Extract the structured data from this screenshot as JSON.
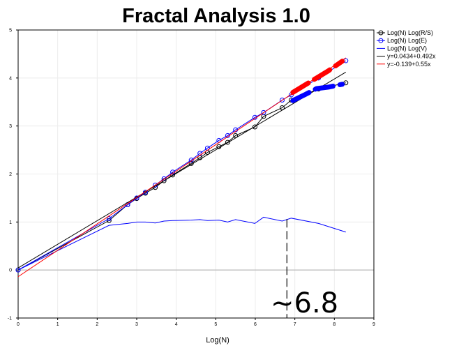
{
  "chart_data": {
    "type": "scatter",
    "title": "Fractal Analysis 1.0",
    "xlabel": "Log(N)",
    "ylabel": "",
    "xlim": [
      0,
      9
    ],
    "ylim": [
      -1,
      5
    ],
    "x_ticks": [
      "0",
      "1",
      "2",
      "3",
      "4",
      "5",
      "6",
      "7",
      "8",
      "9"
    ],
    "y_ticks": [
      "-1",
      "0",
      "1",
      "2",
      "3",
      "4",
      "5"
    ],
    "grid": true,
    "legend_position": "top-right",
    "series": [
      {
        "name": "Log(N) Log(R/S)",
        "kind": "line-markers",
        "color": "#000000",
        "marker": "circle",
        "x": [
          0,
          2.3,
          2.77,
          3.0,
          3.22,
          3.47,
          3.69,
          3.91,
          4.38,
          4.6,
          4.79,
          5.08,
          5.3,
          5.5,
          5.99,
          6.21,
          6.68,
          6.91,
          7.6,
          8.29
        ],
        "y": [
          0.0,
          1.03,
          1.36,
          1.49,
          1.6,
          1.72,
          1.86,
          1.98,
          2.22,
          2.34,
          2.45,
          2.57,
          2.66,
          2.8,
          2.98,
          3.2,
          3.38,
          3.54,
          3.77,
          3.9
        ]
      },
      {
        "name": "Log(N) Log(E)",
        "kind": "line-markers",
        "color": "#0000ff",
        "marker": "circle",
        "x": [
          0,
          2.3,
          2.77,
          3.0,
          3.22,
          3.47,
          3.69,
          3.91,
          4.38,
          4.6,
          4.79,
          5.08,
          5.3,
          5.5,
          5.99,
          6.21,
          6.68,
          6.91,
          7.6,
          8.29
        ],
        "y": [
          0.0,
          1.07,
          1.36,
          1.5,
          1.62,
          1.77,
          1.9,
          2.04,
          2.29,
          2.43,
          2.54,
          2.7,
          2.8,
          2.92,
          3.18,
          3.28,
          3.54,
          3.65,
          4.0,
          4.36
        ]
      },
      {
        "name": "Log(N) Log(V)",
        "kind": "line",
        "color": "#0000ff",
        "x": [
          0,
          2.3,
          2.77,
          3.0,
          3.22,
          3.47,
          3.69,
          3.91,
          4.38,
          4.6,
          4.79,
          5.08,
          5.3,
          5.5,
          5.99,
          6.21,
          6.68,
          6.91,
          7.6,
          8.29
        ],
        "y": [
          0.0,
          0.93,
          0.97,
          1.0,
          1.0,
          0.98,
          1.02,
          1.03,
          1.04,
          1.05,
          1.03,
          1.04,
          1.0,
          1.05,
          0.97,
          1.1,
          1.02,
          1.08,
          0.97,
          0.79
        ]
      },
      {
        "name": "y=0.0434+0.492x",
        "kind": "fit",
        "color": "#000000",
        "intercept": 0.0434,
        "slope": 0.492,
        "x_range": [
          0,
          8.29
        ]
      },
      {
        "name": "y=-0.139+0.55x",
        "kind": "fit",
        "color": "#ff0000",
        "intercept": -0.139,
        "slope": 0.55,
        "x_range": [
          0,
          8.29
        ]
      }
    ],
    "highlights": [
      {
        "color": "#ff0000",
        "x": [
          6.95,
          7.25,
          7.55,
          7.85,
          8.2
        ],
        "y": [
          3.7,
          3.85,
          4.0,
          4.15,
          4.35
        ]
      },
      {
        "color": "#0000ff",
        "x": [
          6.95,
          7.25,
          7.55,
          7.85,
          8.2
        ],
        "y": [
          3.53,
          3.65,
          3.78,
          3.81,
          3.87
        ]
      }
    ],
    "reference_line": {
      "x": 6.8,
      "from_y": -1,
      "to_y": 1.06
    },
    "zero_line_y": 0,
    "annotation": {
      "text": "~6.8",
      "x": 6.8,
      "y": -0.7
    }
  }
}
